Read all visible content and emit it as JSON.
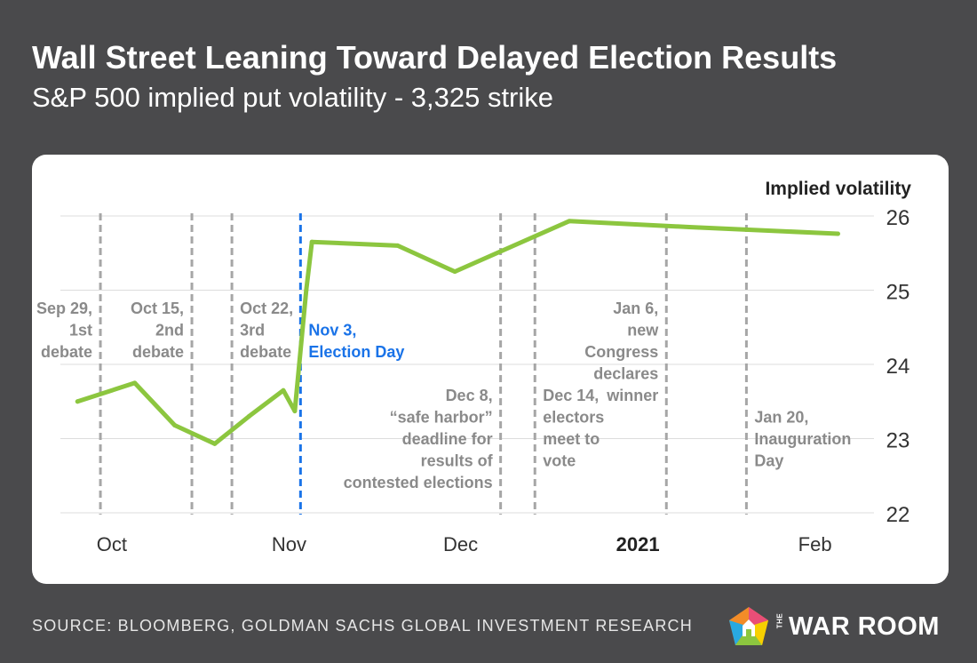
{
  "header": {
    "title": "Wall Street Leaning Toward Delayed Election Results",
    "subtitle": "S&P 500 implied put volatility - 3,325 strike"
  },
  "footer": {
    "source": "SOURCE: BLOOMBERG, GOLDMAN SACHS GLOBAL INVESTMENT RESEARCH",
    "logo_small": "THE",
    "logo_text": "WAR ROOM"
  },
  "colors": {
    "background": "#4a4a4c",
    "line": "#8cc63f",
    "event_line": "#a6a6a6",
    "election_line": "#1a73e8",
    "annotation": "#8a8a8a",
    "grid": "#dddddd",
    "axis_text": "#333333"
  },
  "chart_data": {
    "type": "line",
    "title": "Wall Street Leaning Toward Delayed Election Results",
    "ylabel": "Implied volatility",
    "ylim": [
      22,
      26
    ],
    "yticks": [
      22,
      23,
      24,
      25,
      26
    ],
    "x_domain": [
      "2020-09-22",
      "2021-02-11"
    ],
    "xticks": [
      {
        "date": "2020-10-01",
        "label": "Oct",
        "bold": false
      },
      {
        "date": "2020-11-01",
        "label": "Nov",
        "bold": false
      },
      {
        "date": "2020-12-01",
        "label": "Dec",
        "bold": false
      },
      {
        "date": "2021-01-01",
        "label": "2021",
        "bold": true
      },
      {
        "date": "2021-02-01",
        "label": "Feb",
        "bold": false
      }
    ],
    "series": [
      {
        "name": "Implied volatility",
        "points": [
          {
            "x": "2020-09-25",
            "y": 23.5
          },
          {
            "x": "2020-10-05",
            "y": 23.75
          },
          {
            "x": "2020-10-12",
            "y": 23.18
          },
          {
            "x": "2020-10-19",
            "y": 22.93
          },
          {
            "x": "2020-10-25",
            "y": 23.3
          },
          {
            "x": "2020-10-31",
            "y": 23.65
          },
          {
            "x": "2020-11-02",
            "y": 23.37
          },
          {
            "x": "2020-11-04",
            "y": 25.0
          },
          {
            "x": "2020-11-05",
            "y": 25.65
          },
          {
            "x": "2020-11-20",
            "y": 25.6
          },
          {
            "x": "2020-11-30",
            "y": 25.25
          },
          {
            "x": "2020-12-20",
            "y": 25.93
          },
          {
            "x": "2021-01-10",
            "y": 25.85
          },
          {
            "x": "2021-02-05",
            "y": 25.76
          }
        ]
      }
    ],
    "events": [
      {
        "date": "2020-09-29",
        "lines": [
          "Sep 29,",
          "1st",
          "debate"
        ],
        "align": "end",
        "top_line": 1,
        "election": false
      },
      {
        "date": "2020-10-15",
        "lines": [
          "Oct 15,",
          "2nd",
          "debate"
        ],
        "align": "end",
        "top_line": 1,
        "election": false
      },
      {
        "date": "2020-10-22",
        "lines": [
          "Oct 22,",
          "3rd",
          "debate"
        ],
        "align": "start",
        "top_line": 1,
        "election": false
      },
      {
        "date": "2020-11-03",
        "lines": [
          "Nov 3,",
          "Election Day"
        ],
        "align": "start",
        "top_line": 2,
        "election": true
      },
      {
        "date": "2020-12-08",
        "lines": [
          "Dec 8,",
          "“safe harbor”",
          "deadline for",
          "results of",
          "contested elections"
        ],
        "align": "end",
        "top_line": 5,
        "election": false
      },
      {
        "date": "2020-12-14",
        "lines": [
          "Dec 14,",
          "electors",
          "meet to",
          "vote"
        ],
        "align": "start",
        "top_line": 5,
        "election": false
      },
      {
        "date": "2021-01-06",
        "lines": [
          "Jan 6,",
          "new",
          "Congress",
          "declares",
          "winner"
        ],
        "align": "end",
        "top_line": 1,
        "election": false
      },
      {
        "date": "2021-01-20",
        "lines": [
          "Jan 20,",
          "Inauguration",
          "Day"
        ],
        "align": "start",
        "top_line": 6,
        "election": false
      }
    ]
  }
}
